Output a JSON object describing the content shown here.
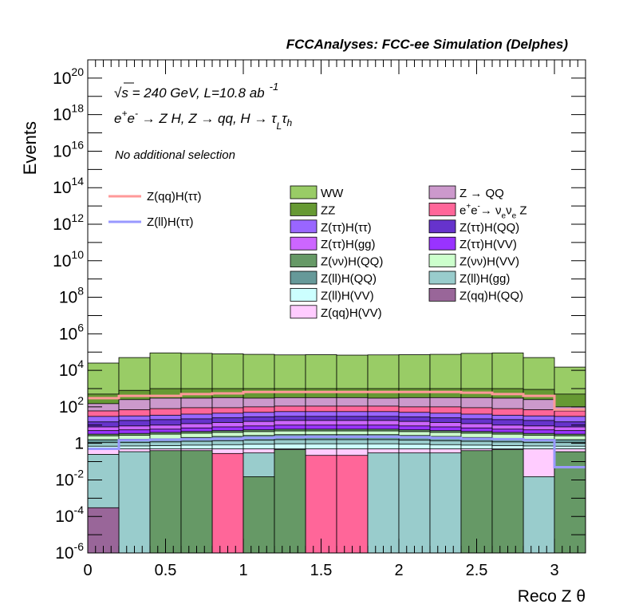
{
  "chart_data": {
    "type": "area",
    "title": "FCCAnalyses: FCC-ee Simulation (Delphes)",
    "xlabel": "Reco Z θ",
    "ylabel": "Events",
    "yscale": "log",
    "xlim": [
      0,
      3.2
    ],
    "ylim": [
      1e-06,
      1e+21
    ],
    "grid": false,
    "legend_position": "top-center",
    "annotations": [
      {
        "id": "energy",
        "text_parts": [
          "√s",
          " = 240 GeV, L=10.8 ab",
          "-1"
        ]
      },
      {
        "id": "process",
        "text_parts": [
          "e",
          "+",
          "e",
          "-",
          " → Z H, Z  → qq, H  → τ",
          "L",
          "τ",
          "h"
        ]
      },
      {
        "id": "selection",
        "text": "No additional selection"
      }
    ],
    "x_ticks": [
      {
        "v": 0,
        "label": "0"
      },
      {
        "v": 0.5,
        "label": "0.5"
      },
      {
        "v": 1,
        "label": "1"
      },
      {
        "v": 1.5,
        "label": "1.5"
      },
      {
        "v": 2,
        "label": "2"
      },
      {
        "v": 2.5,
        "label": "2.5"
      },
      {
        "v": 3,
        "label": "3"
      }
    ],
    "y_ticks": [
      {
        "exp": -6,
        "base": "10",
        "sup": "-6"
      },
      {
        "exp": -4,
        "base": "10",
        "sup": "-4"
      },
      {
        "exp": -2,
        "base": "10",
        "sup": "-2"
      },
      {
        "exp": 0,
        "base": "1",
        "sup": ""
      },
      {
        "exp": 2,
        "base": "10",
        "sup": "2"
      },
      {
        "exp": 4,
        "base": "10",
        "sup": "4"
      },
      {
        "exp": 6,
        "base": "10",
        "sup": "6"
      },
      {
        "exp": 8,
        "base": "10",
        "sup": "8"
      },
      {
        "exp": 10,
        "base": "10",
        "sup": "10"
      },
      {
        "exp": 12,
        "base": "10",
        "sup": "12"
      },
      {
        "exp": 14,
        "base": "10",
        "sup": "14"
      },
      {
        "exp": 16,
        "base": "10",
        "sup": "16"
      },
      {
        "exp": 18,
        "base": "10",
        "sup": "18"
      },
      {
        "exp": 20,
        "base": "10",
        "sup": "20"
      }
    ],
    "bin_edges": [
      0,
      0.2,
      0.4,
      0.6,
      0.8,
      1.0,
      1.2,
      1.4,
      1.6,
      1.8,
      2.0,
      2.2,
      2.4,
      2.6,
      2.8,
      3.0,
      3.2
    ],
    "stack_totals": [
      {
        "name": "WW",
        "color": "#99cc66",
        "values": [
          25000,
          50000,
          90000,
          85000,
          80000,
          75000,
          70000,
          72000,
          68000,
          70000,
          72000,
          75000,
          85000,
          90000,
          50000,
          15000
        ]
      },
      {
        "name": "ZZ",
        "color": "#669933",
        "values": [
          500,
          800,
          1000,
          1000,
          1000,
          1000,
          1000,
          1000,
          1000,
          1000,
          1000,
          1000,
          1000,
          1000,
          900,
          500
        ]
      },
      {
        "name": "Z → QQ",
        "color": "#cc99cc",
        "values": [
          150,
          250,
          300,
          300,
          320,
          300,
          320,
          320,
          320,
          300,
          320,
          320,
          320,
          300,
          250,
          100
        ]
      },
      {
        "name": "e+e- → νeνe Z",
        "color": "#ff6699",
        "values": [
          60,
          70,
          80,
          90,
          90,
          100,
          110,
          110,
          110,
          110,
          100,
          100,
          90,
          80,
          70,
          60
        ]
      },
      {
        "name": "Z(ττ)H(ττ)",
        "color": "#9966ff",
        "values": [
          30,
          32,
          35,
          40,
          45,
          50,
          55,
          55,
          55,
          55,
          50,
          45,
          40,
          35,
          32,
          30
        ]
      },
      {
        "name": "Z(ττ)H(QQ)",
        "color": "#6633cc",
        "values": [
          15,
          18,
          20,
          22,
          25,
          28,
          30,
          30,
          30,
          30,
          28,
          25,
          22,
          20,
          18,
          15
        ]
      },
      {
        "name": "Z(ττ)H(gg)",
        "color": "#cc66ff",
        "values": [
          8,
          9,
          10,
          12,
          14,
          16,
          18,
          18,
          18,
          18,
          16,
          14,
          12,
          10,
          9,
          8
        ]
      },
      {
        "name": "Z(ττ)H(VV)",
        "color": "#9933ff",
        "values": [
          5,
          5.5,
          6,
          7,
          8,
          9,
          10,
          10,
          10,
          10,
          9,
          8,
          7,
          6,
          5.5,
          5
        ]
      },
      {
        "name": "Z(νν)H(QQ)",
        "color": "#669966",
        "values": [
          3.2,
          3.5,
          4,
          4.5,
          5,
          5.5,
          6,
          6,
          6,
          6,
          5.5,
          5,
          4.5,
          4,
          3.5,
          3.2
        ]
      },
      {
        "name": "Z(νν)H(VV)",
        "color": "#ccffcc",
        "values": [
          2.6,
          2.8,
          3.2,
          3.6,
          4,
          4.4,
          4.8,
          4.8,
          4.8,
          4.8,
          4.4,
          4,
          3.6,
          3.2,
          2.8,
          2.6
        ]
      },
      {
        "name": "Z(ll)H(QQ)",
        "color": "#669999",
        "values": [
          1.6,
          1.7,
          1.8,
          2.1,
          2.4,
          2.7,
          3,
          3,
          3,
          3,
          2.7,
          2.4,
          2.1,
          1.8,
          1.7,
          1.6
        ]
      },
      {
        "name": "Z(ll)H(gg)",
        "color": "#99cccc",
        "values": [
          1.1,
          1.1,
          1.2,
          1.3,
          1.4,
          1.5,
          1.6,
          1.6,
          1.6,
          1.6,
          1.5,
          1.4,
          1.3,
          1.2,
          1.1,
          1.1
        ]
      },
      {
        "name": "Z(ll)H(VV)",
        "color": "#ccffff",
        "values": [
          0.7,
          0.72,
          0.75,
          0.8,
          0.85,
          0.9,
          0.95,
          0.95,
          0.95,
          0.95,
          0.9,
          0.85,
          0.8,
          0.75,
          0.72,
          0.7
        ]
      },
      {
        "name": "Z(qq)H(VV)",
        "color": "#ffccff",
        "values": [
          0.5,
          0.5,
          0.5,
          0.5,
          0.5,
          0.5,
          0.5,
          0.5,
          0.5,
          0.5,
          0.5,
          0.5,
          0.5,
          0.5,
          0.5,
          0.5
        ]
      },
      {
        "name": "Z(qq)H(QQ)",
        "color": "#996699",
        "values": [
          0.0003,
          null,
          null,
          null,
          null,
          null,
          null,
          null,
          null,
          null,
          null,
          null,
          null,
          null,
          null,
          null
        ]
      }
    ],
    "low_fills": [
      {
        "color": "#ff6699",
        "values": [
          0.25,
          null,
          null,
          null,
          0.28,
          null,
          null,
          0.22,
          0.22,
          null,
          null,
          null,
          null,
          null,
          null,
          null
        ]
      },
      {
        "color": "#99cccc",
        "values": [
          0.25,
          0.35,
          null,
          null,
          null,
          0.3,
          null,
          null,
          null,
          0.3,
          0.3,
          0.3,
          null,
          null,
          0.015,
          null
        ]
      },
      {
        "color": "#669966",
        "values": [
          null,
          null,
          0.4,
          0.4,
          null,
          0.015,
          0.45,
          null,
          null,
          null,
          null,
          null,
          0.4,
          0.45,
          null,
          0.35
        ]
      }
    ],
    "lines": [
      {
        "name": "Z(qq)H(ττ)",
        "color": "#ff9999",
        "values": [
          300,
          400,
          400,
          500,
          550,
          650,
          650,
          650,
          650,
          650,
          650,
          650,
          600,
          500,
          400,
          70
        ]
      },
      {
        "name": "Z(ll)H(ττ)",
        "color": "#9999ff",
        "values": [
          0.5,
          1.5,
          1.6,
          1.7,
          1.8,
          2,
          2.2,
          2.3,
          2.3,
          2.3,
          2.2,
          2,
          1.8,
          1.7,
          1.5,
          0.05
        ]
      }
    ],
    "legend": {
      "lines": [
        {
          "name": "Z(qq)H(ττ)",
          "color": "#ff9999"
        },
        {
          "name": "Z(ll)H(ττ)",
          "color": "#9999ff"
        }
      ],
      "fills": [
        {
          "name": "WW",
          "color": "#99cc66"
        },
        {
          "name": "Z → QQ",
          "color": "#cc99cc"
        },
        {
          "name": "ZZ",
          "color": "#669933"
        },
        {
          "name": "e+e- → νeνe Z",
          "color": "#ff6699",
          "rich": [
            [
              "e",
              ""
            ],
            [
              "+",
              "sup"
            ],
            [
              "e",
              ""
            ],
            [
              "-",
              "sup"
            ],
            [
              "→ ν",
              ""
            ],
            [
              "e",
              "sub"
            ],
            [
              "ν",
              ""
            ],
            [
              "e",
              "sub"
            ],
            [
              " Z",
              ""
            ]
          ]
        },
        {
          "name": "Z(ττ)H(ττ)",
          "color": "#9966ff"
        },
        {
          "name": "Z(ττ)H(QQ)",
          "color": "#6633cc"
        },
        {
          "name": "Z(ττ)H(gg)",
          "color": "#cc66ff"
        },
        {
          "name": "Z(ττ)H(VV)",
          "color": "#9933ff"
        },
        {
          "name": "Z(νν)H(QQ)",
          "color": "#669966"
        },
        {
          "name": "Z(νν)H(VV)",
          "color": "#ccffcc"
        },
        {
          "name": "Z(ll)H(QQ)",
          "color": "#669999"
        },
        {
          "name": "Z(ll)H(gg)",
          "color": "#99cccc"
        },
        {
          "name": "Z(ll)H(VV)",
          "color": "#ccffff"
        },
        {
          "name": "Z(qq)H(QQ)",
          "color": "#996699"
        },
        {
          "name": "Z(qq)H(VV)",
          "color": "#ffccff"
        }
      ]
    }
  }
}
